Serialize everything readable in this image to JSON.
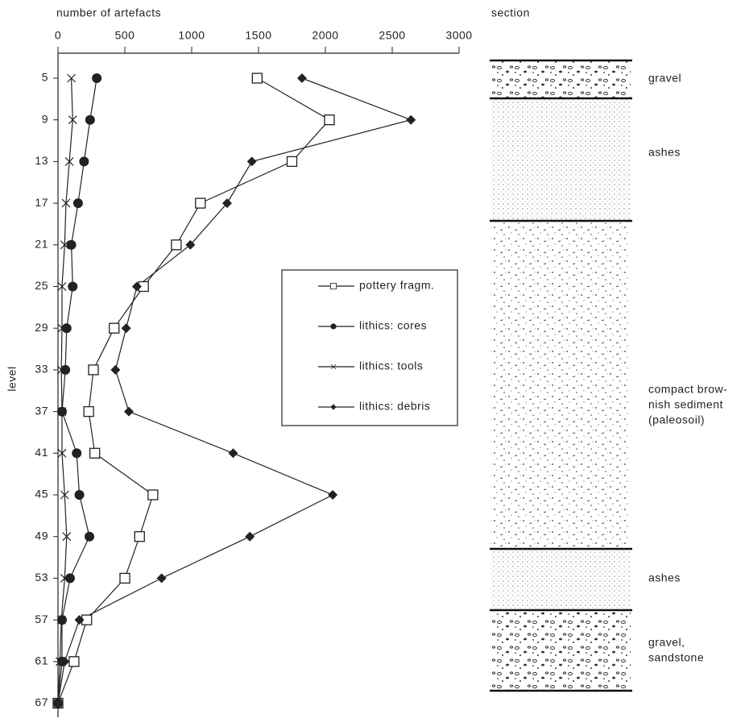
{
  "chart_data": {
    "type": "line",
    "x_label": "number of artefacts",
    "y_label": "level",
    "categories": [
      "5",
      "9",
      "13",
      "17",
      "21",
      "25",
      "29",
      "33",
      "37",
      "41",
      "45",
      "49",
      "53",
      "57",
      "61",
      "67"
    ],
    "xlim": [
      0,
      3000
    ],
    "xticks": [
      0,
      500,
      1000,
      1500,
      2000,
      2500,
      3000
    ],
    "series": [
      {
        "name": "pottery fragm.",
        "color": "#222222",
        "marker": "square",
        "values": [
          1490,
          2030,
          1750,
          1065,
          885,
          640,
          420,
          265,
          230,
          275,
          710,
          610,
          500,
          215,
          120,
          0
        ]
      },
      {
        "name": "lithics: cores",
        "color": "#222222",
        "marker": "circle",
        "values": [
          290,
          240,
          195,
          150,
          100,
          110,
          65,
          55,
          30,
          140,
          160,
          235,
          90,
          30,
          30,
          0
        ]
      },
      {
        "name": "lithics: tools",
        "color": "#222222",
        "marker": "cross",
        "values": [
          100,
          110,
          85,
          60,
          50,
          30,
          30,
          25,
          30,
          30,
          50,
          65,
          50,
          25,
          15,
          0
        ]
      },
      {
        "name": "lithics: debris",
        "color": "#222222",
        "marker": "diamond",
        "values": [
          1825,
          2640,
          1450,
          1265,
          990,
          590,
          510,
          430,
          530,
          1310,
          2055,
          1435,
          775,
          160,
          50,
          0
        ]
      }
    ]
  },
  "section": {
    "title": "section",
    "layers": [
      {
        "label": [
          "gravel"
        ]
      },
      {
        "label": [
          "ashes"
        ]
      },
      {
        "label": [
          "compact brow-",
          "nish sediment",
          "(paleosoil)"
        ]
      },
      {
        "label": [
          "ashes"
        ]
      },
      {
        "label": [
          "gravel,",
          "sandstone"
        ]
      }
    ]
  }
}
